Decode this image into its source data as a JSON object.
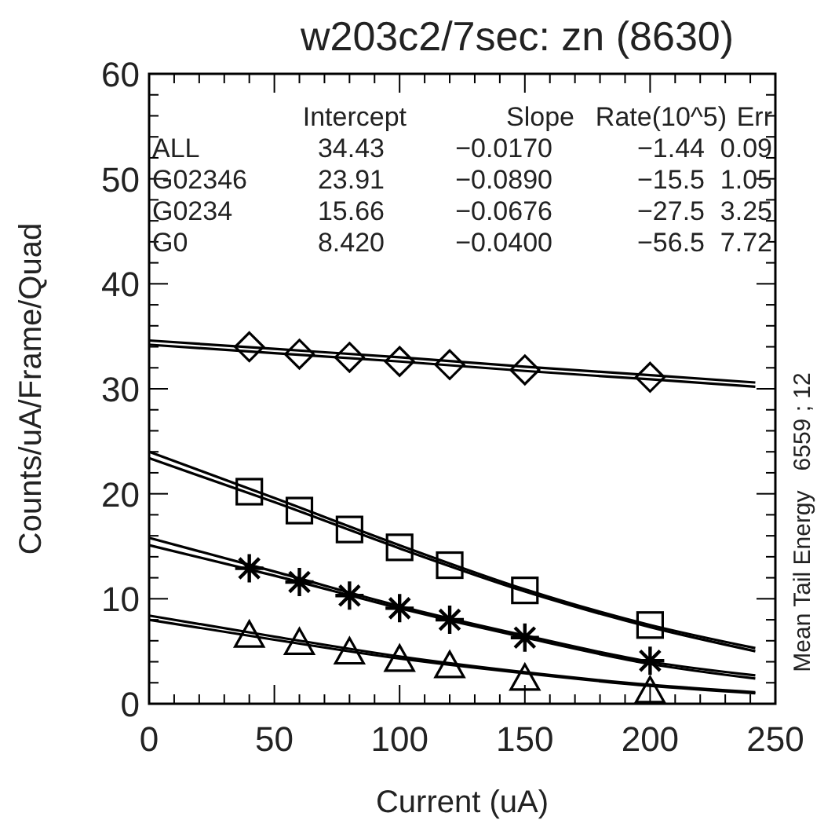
{
  "chart_data": {
    "type": "scatter",
    "title": "w203c2/7sec:  zn (8630)",
    "xlabel": "Current (uA)",
    "ylabel": "Counts/uA/Frame/Quad",
    "y2label": "Mean Tail Energy   6559 ; 12",
    "xlim": [
      0,
      250
    ],
    "xticks": [
      0,
      50,
      100,
      150,
      200,
      250
    ],
    "ylim": [
      0,
      60
    ],
    "yticks": [
      0,
      10,
      20,
      30,
      40,
      50,
      60
    ],
    "grid": false,
    "annotations": [
      "Intercept Slope Rate(10^5) Err",
      "ALL 34.43 −0.0170 −1.44 0.09",
      "G02346 23.91 −0.0890 −15.5 1.05",
      "G0234 15.66 −0.0676 −27.5 3.25",
      "G0 8.420 −0.0400 −56.5 7.72"
    ],
    "series": [
      {
        "marker": "diamond",
        "color": "#000000",
        "x": [
          40,
          60,
          80,
          100,
          120,
          150,
          200
        ],
        "values": [
          34,
          33.3,
          33,
          32.6,
          32.3,
          31.8,
          31.1
        ]
      },
      {
        "marker": "square",
        "color": "#000000",
        "x": [
          40,
          60,
          80,
          100,
          120,
          150,
          200
        ],
        "values": [
          20.2,
          18.4,
          16.6,
          14.9,
          13.2,
          10.8,
          7.5
        ]
      },
      {
        "marker": "cross",
        "color": "#000000",
        "x": [
          40,
          60,
          80,
          100,
          120,
          150,
          200
        ],
        "values": [
          12.9,
          11.6,
          10.3,
          9.1,
          8.0,
          6.3,
          4.1
        ]
      },
      {
        "marker": "triangle",
        "color": "#000000",
        "x": [
          40,
          60,
          80,
          100,
          120,
          150,
          200
        ],
        "values": [
          6.5,
          5.8,
          4.9,
          4.2,
          3.6,
          2.4,
          1.2
        ]
      },
      {
        "type": "line",
        "marker": "none",
        "color": "#000000",
        "x": [
          0,
          50,
          100,
          150,
          200,
          242
        ],
        "values": [
          34.6,
          33.8,
          33.0,
          32.1,
          31.3,
          30.6
        ]
      },
      {
        "type": "line",
        "marker": "none",
        "color": "#000000",
        "x": [
          0,
          50,
          100,
          150,
          200,
          242
        ],
        "values": [
          34.2,
          33.4,
          32.6,
          31.7,
          30.9,
          30.2
        ]
      },
      {
        "type": "line",
        "marker": "none",
        "color": "#000000",
        "x": [
          0,
          50,
          100,
          150,
          200,
          242
        ],
        "values": [
          24.0,
          19.6,
          15.1,
          10.9,
          7.5,
          5.3
        ]
      },
      {
        "type": "line",
        "marker": "none",
        "color": "#000000",
        "x": [
          0,
          50,
          100,
          150,
          200,
          242
        ],
        "values": [
          23.4,
          19.2,
          14.8,
          10.7,
          7.3,
          5.0
        ]
      },
      {
        "type": "line",
        "marker": "none",
        "color": "#000000",
        "x": [
          0,
          50,
          100,
          150,
          200,
          242
        ],
        "values": [
          15.8,
          12.6,
          9.3,
          6.5,
          4.0,
          2.7
        ]
      },
      {
        "type": "line",
        "marker": "none",
        "color": "#000000",
        "x": [
          0,
          50,
          100,
          150,
          200,
          242
        ],
        "values": [
          15.1,
          12.2,
          9.1,
          6.3,
          3.8,
          2.4
        ]
      },
      {
        "type": "line",
        "marker": "none",
        "color": "#000000",
        "x": [
          0,
          50,
          100,
          150,
          200,
          242
        ],
        "values": [
          8.4,
          6.4,
          4.5,
          3.0,
          1.8,
          1.1
        ]
      },
      {
        "type": "line",
        "marker": "none",
        "color": "#000000",
        "x": [
          0,
          50,
          100,
          150,
          200,
          242
        ],
        "values": [
          8.0,
          6.1,
          4.3,
          2.9,
          1.7,
          1.0
        ]
      }
    ]
  }
}
